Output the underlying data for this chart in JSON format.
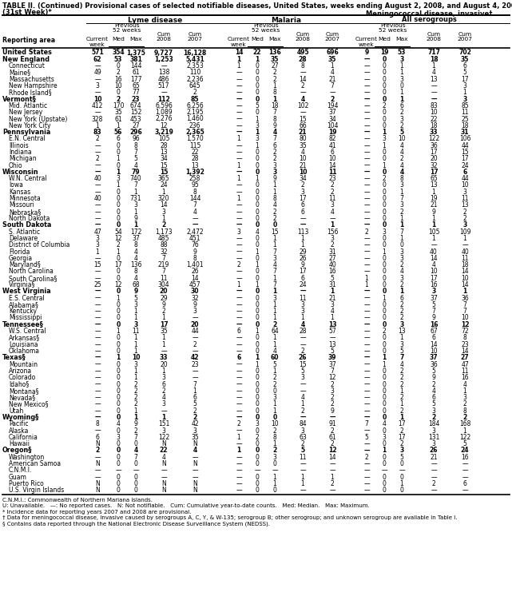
{
  "title": "TABLE II. (Continued) Provisional cases of selected notifiable diseases, United States, weeks ending August 2, 2008, and August 4, 2007",
  "subtitle": "(31st Week)*",
  "footnotes": [
    "C.N.M.I.: Commonwealth of Northern Mariana Islands.",
    "U: Unavailable.   —: No reported cases.   N: Not notifiable.   Cum: Cumulative year-to-date counts.   Med: Median.   Max: Maximum.",
    "* Incidence data for reporting years 2007 and 2008 are provisional.",
    "† Data for meningococcal disease, invasive caused by serogroups A, C, Y, & W-135; serogroup B; other serogroup; and unknown serogroup are available in Table I.",
    "§ Contains data reported through the National Electronic Disease Surveillance System (NEDSS)."
  ],
  "rows": [
    [
      "United States",
      "571",
      "354",
      "1,375",
      "9,727",
      "16,128",
      "14",
      "22",
      "136",
      "495",
      "696",
      "9",
      "19",
      "53",
      "717",
      "702"
    ],
    [
      "New England",
      "62",
      "53",
      "381",
      "1,253",
      "5,431",
      "1",
      "1",
      "35",
      "28",
      "35",
      "—",
      "0",
      "3",
      "18",
      "35"
    ],
    [
      "Connecticut",
      "—",
      "0",
      "144",
      "—",
      "2,353",
      "1",
      "0",
      "27",
      "8",
      "1",
      "—",
      "0",
      "1",
      "1",
      "6"
    ],
    [
      "Maine§",
      "49",
      "2",
      "61",
      "138",
      "110",
      "—",
      "0",
      "2",
      "—",
      "4",
      "—",
      "0",
      "1",
      "4",
      "5"
    ],
    [
      "Massachusetts",
      "—",
      "16",
      "177",
      "486",
      "2,236",
      "—",
      "0",
      "2",
      "14",
      "21",
      "—",
      "0",
      "3",
      "13",
      "17"
    ],
    [
      "New Hampshire",
      "3",
      "10",
      "65",
      "517",
      "645",
      "—",
      "0",
      "1",
      "2",
      "7",
      "—",
      "0",
      "0",
      "—",
      "3"
    ],
    [
      "Rhode Island§",
      "—",
      "0",
      "77",
      "—",
      "2",
      "—",
      "0",
      "8",
      "—",
      "—",
      "—",
      "0",
      "1",
      "—",
      "1"
    ],
    [
      "Vermont§",
      "10",
      "2",
      "23",
      "112",
      "85",
      "—",
      "0",
      "1",
      "4",
      "2",
      "—",
      "0",
      "1",
      "—",
      "3"
    ],
    [
      "Mid. Atlantic",
      "412",
      "170",
      "674",
      "6,596",
      "6,256",
      "—",
      "5",
      "18",
      "102",
      "194",
      "—",
      "2",
      "6",
      "83",
      "85"
    ],
    [
      "New Jersey",
      "—",
      "35",
      "152",
      "1,089",
      "2,195",
      "—",
      "0",
      "7",
      "—",
      "37",
      "—",
      "0",
      "2",
      "10",
      "11"
    ],
    [
      "New York (Upstate)",
      "328",
      "61",
      "453",
      "2,276",
      "1,460",
      "—",
      "1",
      "8",
      "15",
      "34",
      "—",
      "0",
      "3",
      "22",
      "25"
    ],
    [
      "New York City",
      "1",
      "1",
      "27",
      "12",
      "236",
      "—",
      "3",
      "9",
      "66",
      "104",
      "—",
      "0",
      "2",
      "18",
      "18"
    ],
    [
      "Pennsylvania",
      "83",
      "56",
      "296",
      "3,219",
      "2,365",
      "—",
      "1",
      "4",
      "21",
      "19",
      "—",
      "1",
      "5",
      "33",
      "31"
    ],
    [
      "E.N. Central",
      "2",
      "6",
      "96",
      "105",
      "1,570",
      "1",
      "3",
      "7",
      "80",
      "82",
      "—",
      "3",
      "10",
      "122",
      "106"
    ],
    [
      "Illinois",
      "—",
      "0",
      "8",
      "28",
      "115",
      "—",
      "1",
      "6",
      "35",
      "41",
      "—",
      "1",
      "4",
      "36",
      "44"
    ],
    [
      "Indiana",
      "—",
      "0",
      "7",
      "13",
      "22",
      "—",
      "0",
      "2",
      "4",
      "6",
      "—",
      "0",
      "4",
      "17",
      "15"
    ],
    [
      "Michigan",
      "2",
      "1",
      "5",
      "34",
      "28",
      "—",
      "0",
      "2",
      "10",
      "10",
      "—",
      "0",
      "2",
      "20",
      "17"
    ],
    [
      "Ohio",
      "—",
      "0",
      "4",
      "15",
      "13",
      "1",
      "0",
      "3",
      "21",
      "14",
      "—",
      "1",
      "4",
      "32",
      "24"
    ],
    [
      "Wisconsin",
      "—",
      "1",
      "79",
      "15",
      "1,392",
      "—",
      "0",
      "3",
      "10",
      "11",
      "—",
      "0",
      "4",
      "17",
      "6"
    ],
    [
      "W.N. Central",
      "40",
      "3",
      "740",
      "365",
      "258",
      "1",
      "1",
      "9",
      "34",
      "23",
      "—",
      "2",
      "8",
      "65",
      "44"
    ],
    [
      "Iowa",
      "—",
      "1",
      "7",
      "24",
      "95",
      "—",
      "0",
      "1",
      "2",
      "2",
      "—",
      "0",
      "3",
      "13",
      "10"
    ],
    [
      "Kansas",
      "—",
      "0",
      "1",
      "1",
      "8",
      "—",
      "0",
      "1",
      "3",
      "2",
      "—",
      "0",
      "1",
      "1",
      "3"
    ],
    [
      "Minnesota",
      "40",
      "0",
      "731",
      "320",
      "144",
      "1",
      "0",
      "8",
      "17",
      "11",
      "—",
      "0",
      "7",
      "19",
      "11"
    ],
    [
      "Missouri",
      "—",
      "0",
      "3",
      "14",
      "7",
      "—",
      "0",
      "4",
      "6",
      "3",
      "—",
      "0",
      "3",
      "21",
      "13"
    ],
    [
      "Nebraska§",
      "—",
      "0",
      "1",
      "3",
      "4",
      "—",
      "0",
      "2",
      "6",
      "4",
      "—",
      "0",
      "2",
      "9",
      "2"
    ],
    [
      "North Dakota",
      "—",
      "0",
      "9",
      "1",
      "—",
      "—",
      "0",
      "2",
      "—",
      "—",
      "—",
      "0",
      "1",
      "1",
      "2"
    ],
    [
      "South Dakota",
      "—",
      "0",
      "1",
      "2",
      "—",
      "—",
      "0",
      "0",
      "—",
      "1",
      "—",
      "0",
      "1",
      "1",
      "3"
    ],
    [
      "S. Atlantic",
      "47",
      "54",
      "172",
      "1,173",
      "2,472",
      "3",
      "4",
      "15",
      "113",
      "156",
      "2",
      "3",
      "7",
      "105",
      "109"
    ],
    [
      "Delaware",
      "3",
      "12",
      "37",
      "485",
      "451",
      "—",
      "0",
      "1",
      "1",
      "3",
      "—",
      "0",
      "1",
      "1",
      "1"
    ],
    [
      "District of Columbia",
      "3",
      "2",
      "8",
      "88",
      "76",
      "—",
      "0",
      "1",
      "1",
      "2",
      "—",
      "0",
      "0",
      "—",
      "—"
    ],
    [
      "Florida",
      "1",
      "1",
      "4",
      "32",
      "9",
      "—",
      "1",
      "7",
      "29",
      "31",
      "—",
      "1",
      "3",
      "40",
      "40"
    ],
    [
      "Georgia",
      "—",
      "0",
      "4",
      "7",
      "8",
      "—",
      "0",
      "3",
      "26",
      "27",
      "—",
      "0",
      "3",
      "14",
      "11"
    ],
    [
      "Maryland§",
      "15",
      "17",
      "136",
      "219",
      "1,401",
      "2",
      "1",
      "4",
      "9",
      "40",
      "—",
      "0",
      "2",
      "4",
      "18"
    ],
    [
      "North Carolina",
      "—",
      "0",
      "8",
      "7",
      "26",
      "—",
      "0",
      "7",
      "17",
      "16",
      "—",
      "0",
      "4",
      "10",
      "14"
    ],
    [
      "South Carolina§",
      "—",
      "0",
      "4",
      "11",
      "14",
      "—",
      "0",
      "1",
      "6",
      "5",
      "1",
      "0",
      "3",
      "17",
      "10"
    ],
    [
      "Virginia§",
      "25",
      "12",
      "68",
      "304",
      "457",
      "1",
      "1",
      "7",
      "24",
      "31",
      "1",
      "0",
      "2",
      "16",
      "14"
    ],
    [
      "West Virginia",
      "—",
      "0",
      "9",
      "20",
      "30",
      "—",
      "0",
      "1",
      "—",
      "1",
      "—",
      "0",
      "1",
      "3",
      "1"
    ],
    [
      "E.S. Central",
      "—",
      "1",
      "5",
      "29",
      "32",
      "—",
      "0",
      "3",
      "11",
      "21",
      "—",
      "1",
      "6",
      "37",
      "36"
    ],
    [
      "Alabama§",
      "—",
      "0",
      "3",
      "9",
      "9",
      "—",
      "0",
      "1",
      "3",
      "3",
      "—",
      "0",
      "2",
      "5",
      "7"
    ],
    [
      "Kentucky",
      "—",
      "0",
      "1",
      "2",
      "3",
      "—",
      "0",
      "1",
      "3",
      "4",
      "—",
      "0",
      "2",
      "7",
      "7"
    ],
    [
      "Mississippi",
      "—",
      "0",
      "1",
      "1",
      "—",
      "—",
      "0",
      "1",
      "1",
      "1",
      "—",
      "0",
      "2",
      "9",
      "10"
    ],
    [
      "Tennessee§",
      "—",
      "0",
      "3",
      "17",
      "20",
      "—",
      "0",
      "2",
      "4",
      "13",
      "—",
      "0",
      "3",
      "16",
      "12"
    ],
    [
      "W.S. Central",
      "—",
      "1",
      "11",
      "35",
      "44",
      "6",
      "1",
      "64",
      "28",
      "57",
      "—",
      "2",
      "13",
      "67",
      "72"
    ],
    [
      "Arkansas§",
      "—",
      "0",
      "1",
      "1",
      "—",
      "—",
      "0",
      "1",
      "—",
      "—",
      "—",
      "0",
      "1",
      "6",
      "8"
    ],
    [
      "Louisiana",
      "—",
      "0",
      "1",
      "1",
      "2",
      "—",
      "0",
      "1",
      "—",
      "13",
      "—",
      "0",
      "3",
      "14",
      "23"
    ],
    [
      "Oklahoma",
      "—",
      "0",
      "1",
      "—",
      "—",
      "—",
      "0",
      "4",
      "2",
      "5",
      "—",
      "0",
      "5",
      "10",
      "14"
    ],
    [
      "Texas§",
      "—",
      "1",
      "10",
      "33",
      "42",
      "6",
      "1",
      "60",
      "26",
      "39",
      "—",
      "1",
      "7",
      "37",
      "27"
    ],
    [
      "Mountain",
      "—",
      "0",
      "3",
      "20",
      "23",
      "—",
      "1",
      "5",
      "15",
      "37",
      "—",
      "1",
      "4",
      "36",
      "47"
    ],
    [
      "Arizona",
      "—",
      "0",
      "1",
      "1",
      "—",
      "—",
      "0",
      "1",
      "5",
      "7",
      "—",
      "0",
      "2",
      "5",
      "11"
    ],
    [
      "Colorado",
      "—",
      "0",
      "1",
      "3",
      "—",
      "—",
      "0",
      "2",
      "3",
      "12",
      "—",
      "0",
      "2",
      "9",
      "16"
    ],
    [
      "Idaho§",
      "—",
      "0",
      "2",
      "6",
      "7",
      "—",
      "0",
      "2",
      "—",
      "2",
      "—",
      "0",
      "2",
      "2",
      "4"
    ],
    [
      "Montana§",
      "—",
      "0",
      "2",
      "2",
      "1",
      "—",
      "0",
      "0",
      "—",
      "3",
      "—",
      "0",
      "1",
      "4",
      "1"
    ],
    [
      "Nevada§",
      "—",
      "0",
      "2",
      "4",
      "6",
      "—",
      "0",
      "3",
      "4",
      "2",
      "—",
      "0",
      "2",
      "6",
      "3"
    ],
    [
      "New Mexico§",
      "—",
      "0",
      "2",
      "3",
      "5",
      "—",
      "0",
      "1",
      "1",
      "2",
      "—",
      "0",
      "1",
      "5",
      "2"
    ],
    [
      "Utah",
      "—",
      "0",
      "1",
      "—",
      "2",
      "—",
      "0",
      "1",
      "2",
      "9",
      "—",
      "0",
      "2",
      "3",
      "8"
    ],
    [
      "Wyoming§",
      "—",
      "0",
      "1",
      "1",
      "2",
      "—",
      "0",
      "0",
      "—",
      "—",
      "—",
      "0",
      "1",
      "2",
      "2"
    ],
    [
      "Pacific",
      "8",
      "4",
      "9",
      "151",
      "42",
      "2",
      "3",
      "10",
      "84",
      "91",
      "7",
      "4",
      "17",
      "184",
      "168"
    ],
    [
      "Alaska",
      "—",
      "0",
      "2",
      "3",
      "3",
      "—",
      "0",
      "2",
      "3",
      "2",
      "—",
      "0",
      "2",
      "3",
      "1"
    ],
    [
      "California",
      "6",
      "3",
      "7",
      "122",
      "35",
      "1",
      "2",
      "8",
      "63",
      "61",
      "5",
      "3",
      "17",
      "131",
      "122"
    ],
    [
      "Hawaii",
      "N",
      "0",
      "0",
      "N",
      "N",
      "—",
      "0",
      "1",
      "2",
      "2",
      "—",
      "0",
      "2",
      "3",
      "5"
    ],
    [
      "Oregon§",
      "2",
      "0",
      "4",
      "22",
      "4",
      "1",
      "0",
      "2",
      "5",
      "12",
      "—",
      "1",
      "3",
      "26",
      "24"
    ],
    [
      "Washington",
      "—",
      "0",
      "7",
      "4",
      "—",
      "—",
      "0",
      "3",
      "11",
      "14",
      "2",
      "0",
      "5",
      "21",
      "16"
    ],
    [
      "American Samoa",
      "N",
      "0",
      "0",
      "N",
      "N",
      "—",
      "0",
      "0",
      "—",
      "—",
      "—",
      "0",
      "0",
      "—",
      "—"
    ],
    [
      "C.N.M.I.",
      "—",
      "—",
      "—",
      "—",
      "—",
      "—",
      "—",
      "—",
      "—",
      "—",
      "—",
      "—",
      "—",
      "—",
      "—"
    ],
    [
      "Guam",
      "—",
      "0",
      "0",
      "—",
      "—",
      "—",
      "0",
      "1",
      "1",
      "1",
      "—",
      "0",
      "0",
      "—",
      "—"
    ],
    [
      "Puerto Rico",
      "N",
      "0",
      "0",
      "N",
      "N",
      "—",
      "0",
      "1",
      "1",
      "2",
      "—",
      "0",
      "1",
      "2",
      "6"
    ],
    [
      "U.S. Virgin Islands",
      "N",
      "0",
      "0",
      "N",
      "N",
      "—",
      "0",
      "0",
      "—",
      "—",
      "—",
      "0",
      "0",
      "—",
      "—"
    ]
  ],
  "bold_rows": [
    0,
    1,
    7,
    12,
    18,
    26,
    36,
    41,
    46,
    55,
    60
  ],
  "section_rows": [
    1,
    7,
    12,
    18,
    26,
    36,
    41,
    46,
    55,
    60
  ],
  "bg_gray_rows": [
    0
  ]
}
